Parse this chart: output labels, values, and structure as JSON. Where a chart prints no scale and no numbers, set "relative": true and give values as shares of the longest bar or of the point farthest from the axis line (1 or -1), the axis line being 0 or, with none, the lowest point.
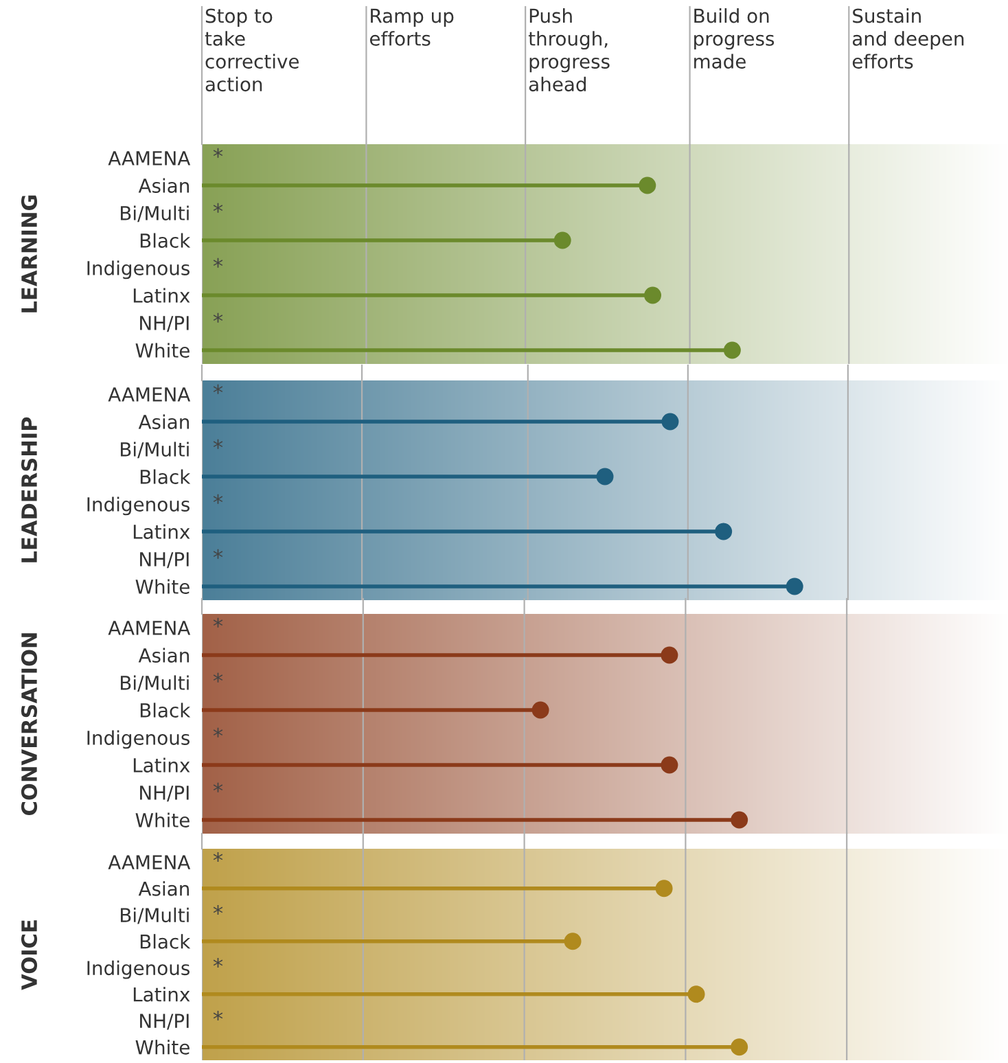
{
  "chart_data": [
    {
      "type": "lollipop",
      "orientation": "horizontal",
      "relative": true,
      "tick_labels": "y",
      "marker": "circle",
      "ylabel": "LEARNING",
      "grid": "y",
      "categories": [
        "AAMENA",
        "Asian",
        "Bi/Multi",
        "Black",
        "Indigenous",
        "Latinx",
        "NH/PI",
        "White"
      ],
      "series": [
        {
          "color": "#6b8a2c",
          "values": [
            null,
            0.84,
            null,
            0.68,
            null,
            0.85,
            null,
            1
          ]
        }
      ],
      "ref_lines": [
        {
          "axis": "x",
          "value": 0,
          "label": "Stop to\ntake\ncorrective\naction",
          "color": "#b0b0b0"
        },
        {
          "axis": "x",
          "value": 0.31,
          "label": "Ramp up\nefforts",
          "color": "#b0b0b0"
        },
        {
          "axis": "x",
          "value": 0.61,
          "label": "Push\nthrough,\nprogress\nahead",
          "color": "#b0b0b0"
        },
        {
          "axis": "x",
          "value": 0.92,
          "label": "Build on\nprogress\nmade",
          "color": "#b0b0b0"
        },
        {
          "axis": "x",
          "value": 1.22,
          "label": "Sustain\nand deepen\nefforts",
          "color": "#b0b0b0"
        }
      ],
      "annotations": [
        "*",
        "*",
        "*",
        "*"
      ]
    },
    {
      "type": "lollipop",
      "orientation": "horizontal",
      "relative": true,
      "tick_labels": "y",
      "marker": "circle",
      "ylabel": "LEADERSHIP",
      "grid": "y",
      "categories": [
        "AAMENA",
        "Asian",
        "Bi/Multi",
        "Black",
        "Indigenous",
        "Latinx",
        "NH/PI",
        "White"
      ],
      "series": [
        {
          "color": "#1f5f7f",
          "values": [
            null,
            0.79,
            null,
            0.68,
            null,
            0.88,
            null,
            1
          ]
        }
      ],
      "ref_lines": [
        {
          "axis": "x",
          "value": 0,
          "color": "#b0b0b0"
        },
        {
          "axis": "x",
          "value": 0.27,
          "color": "#b0b0b0"
        },
        {
          "axis": "x",
          "value": 0.55,
          "color": "#b0b0b0"
        },
        {
          "axis": "x",
          "value": 0.82,
          "color": "#b0b0b0"
        },
        {
          "axis": "x",
          "value": 1.09,
          "color": "#b0b0b0"
        }
      ],
      "annotations": [
        "*",
        "*",
        "*",
        "*"
      ]
    },
    {
      "type": "lollipop",
      "orientation": "horizontal",
      "relative": true,
      "tick_labels": "y",
      "marker": "circle",
      "ylabel": "CONVERSATION",
      "grid": "y",
      "categories": [
        "AAMENA",
        "Asian",
        "Bi/Multi",
        "Black",
        "Indigenous",
        "Latinx",
        "NH/PI",
        "White"
      ],
      "series": [
        {
          "color": "#8b3a1a",
          "values": [
            null,
            0.87,
            null,
            0.63,
            null,
            0.87,
            null,
            1
          ]
        }
      ],
      "ref_lines": [
        {
          "axis": "x",
          "value": 0,
          "color": "#b0b0b0"
        },
        {
          "axis": "x",
          "value": 0.3,
          "color": "#b0b0b0"
        },
        {
          "axis": "x",
          "value": 0.6,
          "color": "#b0b0b0"
        },
        {
          "axis": "x",
          "value": 0.9,
          "color": "#b0b0b0"
        },
        {
          "axis": "x",
          "value": 1.2,
          "color": "#b0b0b0"
        }
      ],
      "annotations": [
        "*",
        "*",
        "*",
        "*"
      ]
    },
    {
      "type": "lollipop",
      "orientation": "horizontal",
      "relative": true,
      "tick_labels": "y",
      "marker": "circle",
      "ylabel": "VOICE",
      "grid": "y",
      "categories": [
        "AAMENA",
        "Asian",
        "Bi/Multi",
        "Black",
        "Indigenous",
        "Latinx",
        "NH/PI",
        "White"
      ],
      "series": [
        {
          "color": "#b08a1e",
          "values": [
            null,
            0.86,
            null,
            0.69,
            null,
            0.92,
            null,
            1
          ]
        }
      ],
      "ref_lines": [
        {
          "axis": "x",
          "value": 0,
          "color": "#b0b0b0"
        },
        {
          "axis": "x",
          "value": 0.3,
          "color": "#b0b0b0"
        },
        {
          "axis": "x",
          "value": 0.6,
          "color": "#b0b0b0"
        },
        {
          "axis": "x",
          "value": 0.9,
          "color": "#b0b0b0"
        },
        {
          "axis": "x",
          "value": 1.2,
          "color": "#b0b0b0"
        }
      ],
      "annotations": [
        "*",
        "*",
        "*",
        "*"
      ]
    }
  ]
}
